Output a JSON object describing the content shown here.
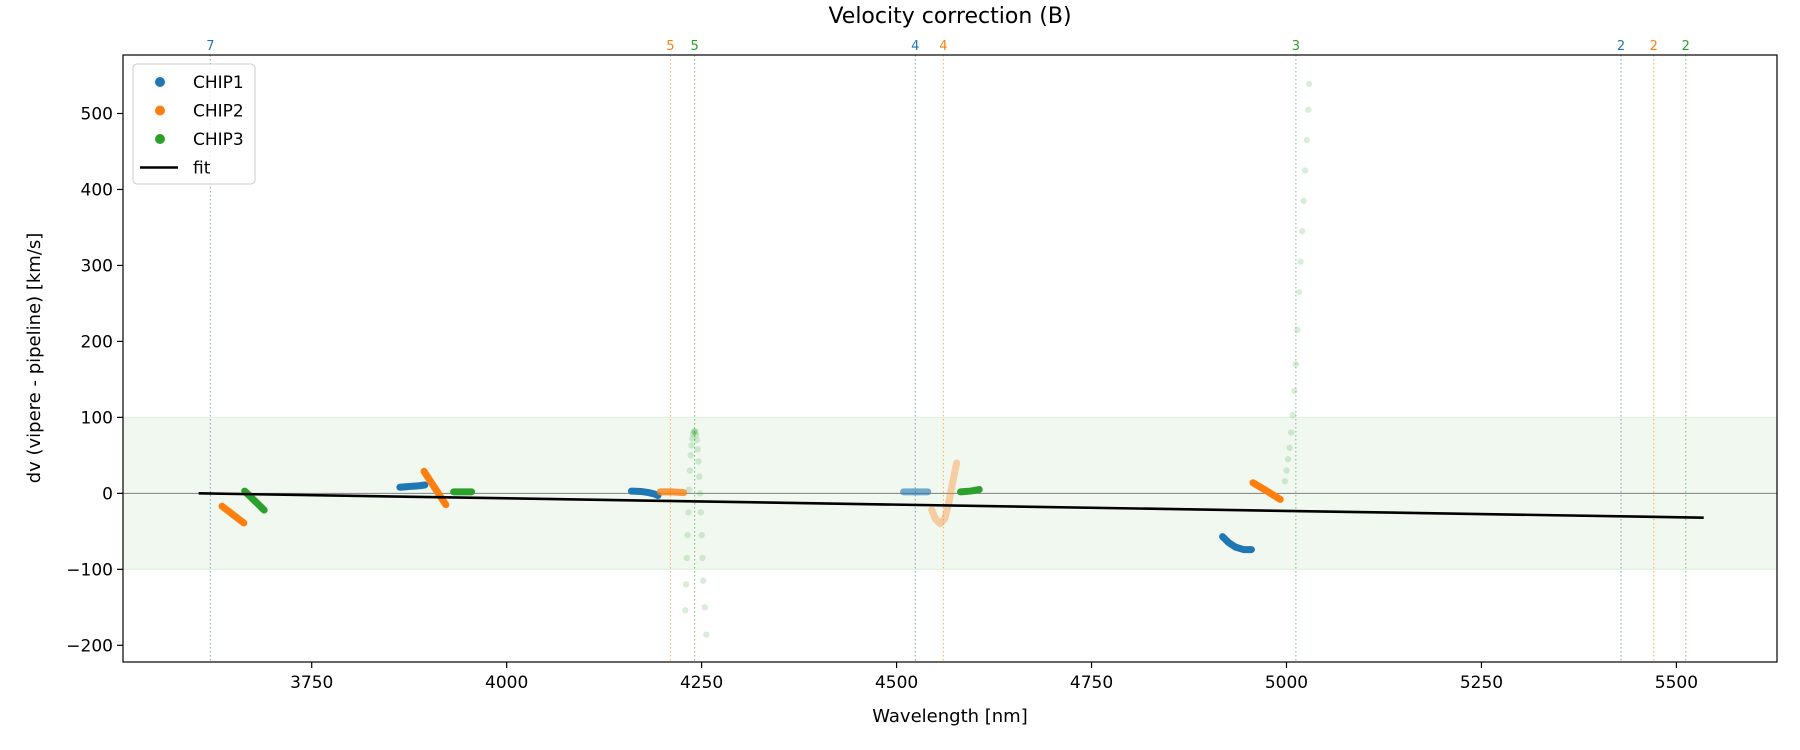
{
  "chart_data": {
    "type": "scatter",
    "title": "Velocity correction (B)",
    "xlabel": "Wavelength [nm]",
    "ylabel": "dv (vipere - pipeline) [km/s]",
    "xlim": [
      3508,
      5629
    ],
    "ylim": [
      -222,
      577
    ],
    "xticks": [
      3750,
      4000,
      4250,
      4500,
      4750,
      5000,
      5250,
      5500
    ],
    "yticks": [
      -200,
      -100,
      0,
      100,
      200,
      300,
      400,
      500
    ],
    "grid": false,
    "legend_placement": "top-left",
    "band": {
      "from": -100,
      "to": 100,
      "color": "#2ca02c"
    },
    "zero_line": 0,
    "colors": {
      "CHIP1": "#1f77b4",
      "CHIP2": "#ff7f0e",
      "CHIP3": "#2ca02c",
      "fit": "#000000"
    },
    "legend": [
      "CHIP1",
      "CHIP2",
      "CHIP3",
      "fit"
    ],
    "order_markers": [
      {
        "label": "7",
        "x": 3620,
        "chip": "CHIP1"
      },
      {
        "label": "5",
        "x": 4210,
        "chip": "CHIP2"
      },
      {
        "label": "5",
        "x": 4241,
        "chip": "CHIP3"
      },
      {
        "label": "4",
        "x": 4524,
        "chip": "CHIP1"
      },
      {
        "label": "4",
        "x": 4560,
        "chip": "CHIP2"
      },
      {
        "label": "3",
        "x": 5012,
        "chip": "CHIP3"
      },
      {
        "label": "2",
        "x": 5429,
        "chip": "CHIP1"
      },
      {
        "label": "2",
        "x": 5471,
        "chip": "CHIP2"
      },
      {
        "label": "2",
        "x": 5512,
        "chip": "CHIP3"
      }
    ],
    "series": [
      {
        "name": "CHIP1",
        "segments": [
          {
            "alpha": 1,
            "points": [
              [
                3863,
                8
              ],
              [
                3875,
                9
              ],
              [
                3888,
                10
              ],
              [
                3895,
                11
              ]
            ]
          },
          {
            "alpha": 1,
            "points": [
              [
                4160,
                3
              ],
              [
                4172,
                2.5
              ],
              [
                4182,
                1
              ],
              [
                4190,
                -1
              ],
              [
                4194,
                -3
              ]
            ]
          },
          {
            "alpha": 0.6,
            "points": [
              [
                4509,
                2
              ],
              [
                4525,
                2
              ],
              [
                4540,
                2
              ]
            ]
          },
          {
            "alpha": 1,
            "points": [
              [
                4918,
                -57
              ],
              [
                4926,
                -65
              ],
              [
                4935,
                -71
              ],
              [
                4945,
                -74
              ],
              [
                4955,
                -74
              ]
            ]
          }
        ]
      },
      {
        "name": "CHIP2",
        "segments": [
          {
            "alpha": 1,
            "points": [
              [
                3635,
                -17
              ],
              [
                3649,
                -28
              ],
              [
                3663,
                -39
              ]
            ]
          },
          {
            "alpha": 1,
            "points": [
              [
                3894,
                29
              ],
              [
                3908,
                7
              ],
              [
                3922,
                -15
              ]
            ]
          },
          {
            "alpha": 0.8,
            "points": [
              [
                4197,
                2
              ],
              [
                4212,
                2
              ],
              [
                4227,
                1
              ]
            ]
          },
          {
            "alpha": 0.35,
            "points": [
              [
                4545,
                -22
              ],
              [
                4550,
                -34
              ],
              [
                4556,
                -40
              ],
              [
                4562,
                -33
              ],
              [
                4567,
                -12
              ],
              [
                4572,
                15
              ],
              [
                4577,
                40
              ]
            ]
          },
          {
            "alpha": 1,
            "points": [
              [
                4957,
                14
              ],
              [
                4975,
                3
              ],
              [
                4992,
                -8
              ]
            ]
          }
        ]
      },
      {
        "name": "CHIP3",
        "segments": [
          {
            "alpha": 1,
            "points": [
              [
                3664,
                3
              ],
              [
                3676,
                -9
              ],
              [
                3689,
                -22
              ]
            ]
          },
          {
            "alpha": 1,
            "points": [
              [
                3932,
                2
              ],
              [
                3944,
                2
              ],
              [
                3955,
                2
              ]
            ]
          },
          {
            "alpha": 0.18,
            "dotted": true,
            "points": [
              [
                4229,
                -154
              ],
              [
                4230,
                -120
              ],
              [
                4231,
                -85
              ],
              [
                4232,
                -55
              ],
              [
                4233,
                -25
              ],
              [
                4234,
                5
              ],
              [
                4235,
                30
              ],
              [
                4236,
                50
              ],
              [
                4237,
                63
              ],
              [
                4238,
                72
              ],
              [
                4239,
                78
              ],
              [
                4240,
                81
              ],
              [
                4241,
                82
              ],
              [
                4242,
                81
              ],
              [
                4243,
                77
              ],
              [
                4244,
                70
              ],
              [
                4245,
                58
              ],
              [
                4246,
                42
              ],
              [
                4247,
                22
              ],
              [
                4248,
                0
              ],
              [
                4249,
                -25
              ],
              [
                4250,
                -55
              ],
              [
                4251,
                -85
              ],
              [
                4252,
                -115
              ],
              [
                4254,
                -150
              ],
              [
                4256,
                -186
              ]
            ]
          },
          {
            "alpha": 1,
            "points": [
              [
                4582,
                2
              ],
              [
                4595,
                3
              ],
              [
                4606,
                5
              ]
            ]
          },
          {
            "alpha": 0.18,
            "dotted": true,
            "points": [
              [
                4998,
                16
              ],
              [
                5000,
                30
              ],
              [
                5002,
                45
              ],
              [
                5004,
                60
              ],
              [
                5006,
                80
              ],
              [
                5008,
                103
              ],
              [
                5010,
                135
              ],
              [
                5012,
                170
              ],
              [
                5014,
                215
              ],
              [
                5016,
                265
              ],
              [
                5018,
                305
              ],
              [
                5020,
                345
              ],
              [
                5022,
                385
              ],
              [
                5024,
                425
              ],
              [
                5026,
                465
              ],
              [
                5028,
                505
              ],
              [
                5029,
                539
              ]
            ]
          }
        ]
      },
      {
        "name": "fit",
        "line": [
          [
            3605,
            0
          ],
          [
            5535,
            -32
          ]
        ]
      }
    ]
  }
}
